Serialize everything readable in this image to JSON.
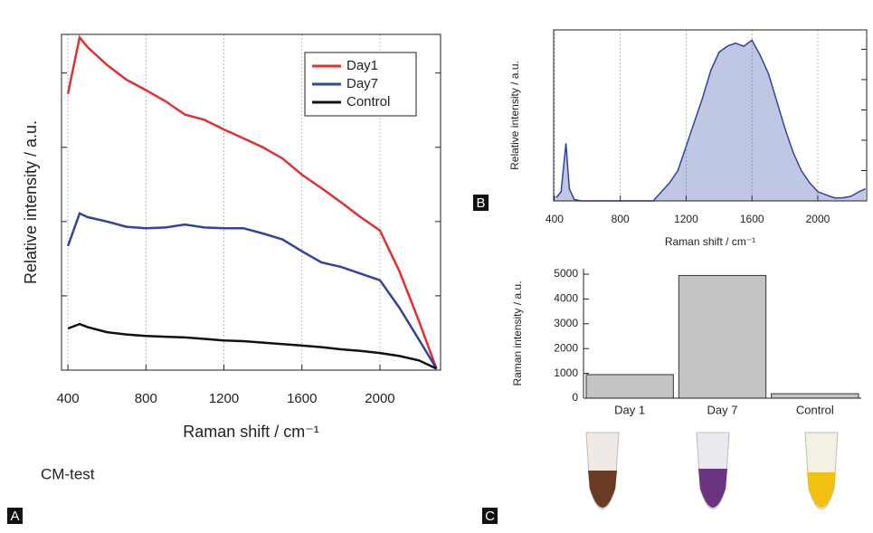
{
  "chart_data": [
    {
      "type": "line",
      "panel": "A",
      "x_label": "Raman shift / cm⁻¹",
      "y_label": "Relative intensity / a.u.",
      "x": [
        400,
        460,
        500,
        600,
        700,
        800,
        900,
        1000,
        1100,
        1200,
        1300,
        1400,
        1500,
        1600,
        1700,
        1800,
        1900,
        2000,
        2100,
        2200,
        2290
      ],
      "series": [
        {
          "name": "Day1",
          "color": "#e03030",
          "values": [
            3.72,
            4.48,
            4.35,
            4.11,
            3.91,
            3.77,
            3.62,
            3.44,
            3.37,
            3.24,
            3.12,
            3.0,
            2.85,
            2.63,
            2.45,
            2.26,
            2.06,
            1.88,
            1.33,
            0.66,
            0.02
          ]
        },
        {
          "name": "Day7",
          "color": "#3045a0",
          "values": [
            1.67,
            2.11,
            2.06,
            2.0,
            1.93,
            1.91,
            1.92,
            1.96,
            1.92,
            1.91,
            1.91,
            1.84,
            1.76,
            1.6,
            1.45,
            1.39,
            1.3,
            1.21,
            0.84,
            0.41,
            0.02
          ]
        },
        {
          "name": "Control",
          "color": "#111111",
          "values": [
            0.56,
            0.62,
            0.58,
            0.51,
            0.48,
            0.46,
            0.45,
            0.44,
            0.42,
            0.4,
            0.39,
            0.37,
            0.35,
            0.33,
            0.31,
            0.28,
            0.26,
            0.23,
            0.19,
            0.13,
            0.02
          ]
        }
      ],
      "xlim": [
        367,
        2311
      ],
      "ylim": [
        0,
        4.52
      ],
      "xticks": [
        400,
        800,
        1200,
        1600,
        2000
      ],
      "yticks": [
        0,
        1,
        2,
        3,
        4
      ],
      "grid": true,
      "legend": "upper right"
    },
    {
      "type": "area",
      "panel": "B",
      "x_label": "Raman shift / cm⁻¹",
      "y_label": "Relative intensity / a.u.",
      "x": [
        410,
        440,
        470,
        490,
        520,
        560,
        600,
        800,
        1000,
        1050,
        1100,
        1150,
        1200,
        1250,
        1300,
        1350,
        1400,
        1450,
        1500,
        1550,
        1600,
        1650,
        1700,
        1750,
        1800,
        1850,
        1900,
        1950,
        2000,
        2050,
        2100,
        2150,
        2200,
        2250,
        2290
      ],
      "values": [
        0.1,
        0.3,
        1.9,
        0.4,
        0.05,
        0,
        0,
        0,
        0,
        0.3,
        0.6,
        1.0,
        1.8,
        2.6,
        3.4,
        4.3,
        4.9,
        5.1,
        5.2,
        5.1,
        5.3,
        4.8,
        4.2,
        3.3,
        2.4,
        1.6,
        1.0,
        0.6,
        0.3,
        0.2,
        0.1,
        0.1,
        0.15,
        0.3,
        0.4
      ],
      "color": "#3045a0",
      "xlim": [
        395,
        2297
      ],
      "ylim": [
        0,
        5.64
      ],
      "xticks": [
        400,
        800,
        1200,
        1600,
        2000
      ],
      "yticks": [
        0,
        1,
        2,
        3,
        4,
        5
      ],
      "grid": true
    },
    {
      "type": "bar",
      "panel": "C",
      "y_label": "Raman intensity / a.u.",
      "categories": [
        "Day 1",
        "Day 7",
        "Control"
      ],
      "values": [
        950,
        4950,
        180
      ],
      "color": "#c4c4c4",
      "ylim": [
        0,
        5220
      ],
      "yticks": [
        0,
        1000,
        2000,
        3000,
        4000,
        5000
      ],
      "grid": false
    }
  ],
  "image_caption": "CM-test"
}
